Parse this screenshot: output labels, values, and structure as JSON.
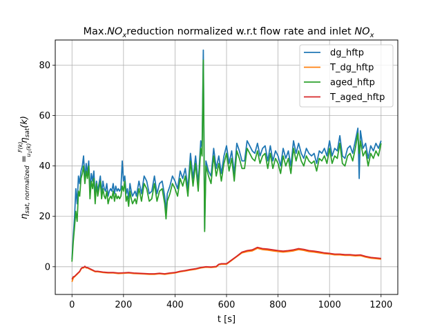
{
  "chart_data": {
    "type": "line",
    "title_prefix": "Max.",
    "title_no": "NO",
    "title_sub": "x",
    "title_mid": "reduction normalized w.r.t flow rate and inlet ",
    "xlabel": "t [s]",
    "ylabel_eta": "η",
    "ylabel_sub": "sat, normalized",
    "ylabel_eq": " = ",
    "ylabel_num": "F(k)",
    "ylabel_den": "u",
    "ylabel_den_sub": "1",
    "ylabel_den_k": "(k)",
    "ylabel_eta2": "η",
    "ylabel_sub2": "sat",
    "ylabel_k": "(k)",
    "xlim": [
      -65,
      1265
    ],
    "ylim": [
      -11,
      90
    ],
    "xticks": [
      0,
      200,
      400,
      600,
      800,
      1000,
      1200
    ],
    "yticks": [
      0,
      20,
      40,
      60,
      80
    ],
    "grid": true,
    "legend_position": "upper-right",
    "series": [
      {
        "name": "dg_hftp",
        "color": "#1f77b4",
        "x": [
          0,
          5,
          10,
          15,
          20,
          25,
          30,
          35,
          40,
          45,
          50,
          55,
          60,
          65,
          70,
          75,
          80,
          85,
          90,
          95,
          100,
          105,
          110,
          115,
          120,
          125,
          130,
          135,
          140,
          145,
          150,
          155,
          160,
          165,
          170,
          175,
          180,
          185,
          190,
          195,
          200,
          205,
          210,
          215,
          220,
          225,
          230,
          235,
          240,
          245,
          250,
          260,
          270,
          280,
          290,
          300,
          310,
          320,
          330,
          340,
          350,
          360,
          365,
          370,
          380,
          390,
          400,
          410,
          420,
          430,
          440,
          450,
          460,
          470,
          480,
          490,
          500,
          505,
          510,
          515,
          520,
          530,
          540,
          550,
          560,
          570,
          580,
          590,
          600,
          610,
          620,
          630,
          640,
          650,
          660,
          670,
          680,
          690,
          700,
          710,
          720,
          730,
          740,
          750,
          760,
          770,
          780,
          790,
          800,
          810,
          820,
          830,
          840,
          850,
          860,
          870,
          880,
          890,
          900,
          910,
          920,
          930,
          940,
          950,
          960,
          970,
          980,
          990,
          1000,
          1010,
          1020,
          1030,
          1040,
          1050,
          1060,
          1070,
          1080,
          1090,
          1100,
          1110,
          1115,
          1120,
          1130,
          1140,
          1150,
          1160,
          1170,
          1180,
          1190,
          1200
        ],
        "y": [
          3,
          12,
          20,
          31,
          25,
          36,
          33,
          38,
          40,
          44,
          35,
          41,
          37,
          42,
          30,
          37,
          34,
          38,
          28,
          34,
          30,
          33,
          36,
          29,
          34,
          31,
          30,
          33,
          28,
          30,
          31,
          30,
          33,
          29,
          32,
          30,
          31,
          30,
          31,
          42,
          34,
          36,
          29,
          31,
          27,
          33,
          30,
          28,
          29,
          30,
          28,
          34,
          29,
          36,
          34,
          29,
          30,
          36,
          29,
          33,
          34,
          28,
          22,
          29,
          32,
          36,
          34,
          31,
          38,
          35,
          39,
          31,
          45,
          35,
          44,
          33,
          50,
          47,
          86,
          15,
          42,
          38,
          36,
          47,
          39,
          44,
          37,
          44,
          48,
          41,
          46,
          37,
          49,
          46,
          42,
          42,
          50,
          48,
          46,
          45,
          49,
          44,
          47,
          48,
          42,
          48,
          42,
          46,
          44,
          40,
          47,
          43,
          46,
          40,
          50,
          45,
          49,
          45,
          43,
          47,
          45,
          44,
          45,
          41,
          46,
          45,
          47,
          44,
          50,
          44,
          47,
          46,
          52,
          44,
          43,
          47,
          48,
          45,
          50,
          55,
          35,
          54,
          47,
          49,
          43,
          48,
          46,
          49,
          47,
          50
        ]
      },
      {
        "name": "T_dg_hftp",
        "color": "#ff7f0e",
        "x": [
          0,
          5,
          10,
          15,
          20,
          25,
          30,
          35,
          40,
          45,
          50,
          55,
          60,
          70,
          80,
          90,
          100,
          120,
          140,
          160,
          180,
          200,
          220,
          240,
          260,
          280,
          300,
          320,
          340,
          360,
          380,
          400,
          420,
          440,
          460,
          480,
          500,
          520,
          540,
          560,
          570,
          580,
          590,
          600,
          620,
          640,
          660,
          680,
          700,
          720,
          740,
          760,
          780,
          800,
          820,
          840,
          860,
          880,
          900,
          920,
          940,
          960,
          980,
          1000,
          1020,
          1040,
          1060,
          1080,
          1100,
          1120,
          1140,
          1160,
          1180,
          1200
        ],
        "y": [
          -6,
          -4.5,
          -4,
          -3.5,
          -3,
          -2.5,
          -2,
          -1,
          -0.5,
          -0.5,
          0,
          -0.5,
          -0.5,
          -1,
          -1.5,
          -2,
          -2,
          -2.3,
          -2.5,
          -2.5,
          -2.7,
          -2.6,
          -2.5,
          -2.7,
          -2.8,
          -2.9,
          -3,
          -3,
          -2.8,
          -3,
          -2.7,
          -2.5,
          -2,
          -1.7,
          -1.3,
          -1,
          -0.5,
          -0.2,
          -0.3,
          -0.1,
          0.8,
          1,
          1,
          1,
          2.5,
          4,
          5.5,
          6,
          6.3,
          7.3,
          6.8,
          6.6,
          6.3,
          6,
          5.8,
          6,
          6.3,
          6.8,
          6.5,
          6,
          5.8,
          5.5,
          5.2,
          5,
          4.7,
          4.7,
          4.5,
          4.5,
          4.3,
          4.4,
          3.8,
          3.4,
          3.2,
          3
        ]
      },
      {
        "name": "aged_hftp",
        "color": "#2ca02c",
        "x": [
          0,
          5,
          10,
          15,
          20,
          25,
          30,
          35,
          40,
          45,
          50,
          55,
          60,
          65,
          70,
          75,
          80,
          85,
          90,
          95,
          100,
          105,
          110,
          115,
          120,
          125,
          130,
          135,
          140,
          145,
          150,
          155,
          160,
          165,
          170,
          175,
          180,
          185,
          190,
          195,
          200,
          205,
          210,
          215,
          220,
          225,
          230,
          235,
          240,
          245,
          250,
          260,
          270,
          280,
          290,
          300,
          310,
          320,
          330,
          340,
          350,
          360,
          365,
          370,
          380,
          390,
          400,
          410,
          420,
          430,
          440,
          450,
          460,
          470,
          480,
          490,
          500,
          505,
          510,
          515,
          520,
          530,
          540,
          550,
          560,
          570,
          580,
          590,
          600,
          610,
          620,
          630,
          640,
          650,
          660,
          670,
          680,
          690,
          700,
          710,
          720,
          730,
          740,
          750,
          760,
          770,
          780,
          790,
          800,
          810,
          820,
          830,
          840,
          850,
          860,
          870,
          880,
          890,
          900,
          910,
          920,
          930,
          940,
          950,
          960,
          970,
          980,
          990,
          1000,
          1010,
          1020,
          1030,
          1040,
          1050,
          1060,
          1070,
          1080,
          1090,
          1100,
          1110,
          1115,
          1120,
          1130,
          1140,
          1150,
          1160,
          1170,
          1180,
          1190,
          1200
        ],
        "y": [
          2,
          10,
          16,
          22,
          18,
          30,
          28,
          35,
          37,
          40,
          33,
          38,
          35,
          40,
          27,
          34,
          31,
          35,
          25,
          33,
          28,
          31,
          34,
          27,
          31,
          28,
          27,
          30,
          25,
          27,
          28,
          27,
          30,
          26,
          29,
          27,
          28,
          27,
          28,
          32,
          30,
          34,
          26,
          28,
          24,
          30,
          27,
          25,
          26,
          27,
          25,
          31,
          26,
          33,
          31,
          26,
          27,
          33,
          26,
          30,
          31,
          25,
          19,
          26,
          29,
          33,
          31,
          28,
          35,
          32,
          36,
          28,
          42,
          32,
          41,
          30,
          47,
          44,
          82,
          14,
          40,
          36,
          33,
          44,
          36,
          41,
          34,
          41,
          45,
          38,
          43,
          34,
          46,
          43,
          39,
          39,
          47,
          45,
          43,
          42,
          46,
          41,
          44,
          45,
          39,
          45,
          39,
          43,
          41,
          37,
          44,
          40,
          43,
          37,
          47,
          42,
          46,
          42,
          40,
          44,
          42,
          41,
          42,
          38,
          43,
          42,
          44,
          41,
          47,
          41,
          44,
          43,
          49,
          41,
          40,
          44,
          45,
          42,
          47,
          53,
          45,
          50,
          44,
          46,
          40,
          45,
          43,
          46,
          44,
          49
        ]
      },
      {
        "name": "T_aged_hftp",
        "color": "#d62728",
        "x": [
          0,
          5,
          10,
          15,
          20,
          25,
          30,
          35,
          40,
          45,
          50,
          55,
          60,
          70,
          80,
          90,
          100,
          120,
          140,
          160,
          180,
          200,
          220,
          240,
          260,
          280,
          300,
          320,
          340,
          360,
          380,
          400,
          420,
          440,
          460,
          480,
          500,
          520,
          540,
          560,
          570,
          580,
          590,
          600,
          620,
          640,
          660,
          680,
          700,
          720,
          740,
          760,
          780,
          800,
          820,
          840,
          860,
          880,
          900,
          920,
          940,
          960,
          980,
          1000,
          1020,
          1040,
          1060,
          1080,
          1100,
          1120,
          1140,
          1160,
          1180,
          1200
        ],
        "y": [
          -5,
          -4,
          -3.8,
          -3.3,
          -2.8,
          -2.3,
          -1.8,
          -0.8,
          -0.3,
          -0.3,
          0.2,
          -0.3,
          -0.3,
          -0.8,
          -1.3,
          -1.8,
          -1.8,
          -2.1,
          -2.3,
          -2.3,
          -2.5,
          -2.4,
          -2.3,
          -2.5,
          -2.6,
          -2.7,
          -2.8,
          -2.8,
          -2.6,
          -2.8,
          -2.5,
          -2.3,
          -1.8,
          -1.5,
          -1.1,
          -0.8,
          -0.3,
          0,
          -0.1,
          0.1,
          1,
          1.2,
          1.2,
          1.2,
          2.7,
          4.2,
          5.8,
          6.4,
          6.7,
          7.7,
          7.2,
          7,
          6.7,
          6.4,
          6.2,
          6.4,
          6.7,
          7.2,
          6.9,
          6.4,
          6.2,
          5.9,
          5.5,
          5.3,
          5,
          5,
          4.8,
          4.8,
          4.6,
          4.7,
          4.1,
          3.7,
          3.5,
          3.3
        ]
      }
    ]
  }
}
